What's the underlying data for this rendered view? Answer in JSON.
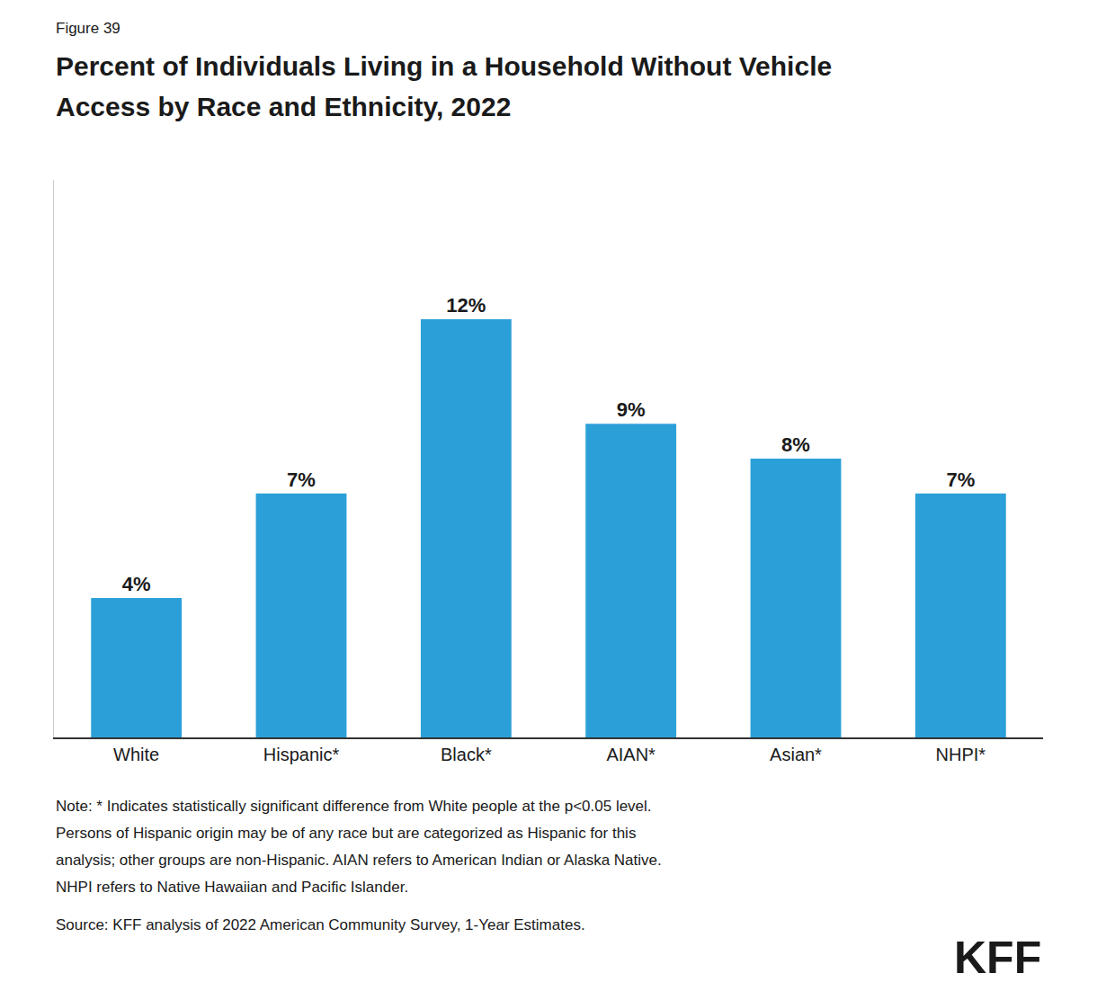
{
  "chart_data": {
    "type": "bar",
    "title": "Percent of Individuals Living in a Household Without Vehicle Access by Race and Ethnicity, 2022",
    "categories": [
      "White",
      "Hispanic*",
      "Black*",
      "AIAN*",
      "Asian*",
      "NHPI*"
    ],
    "values": [
      4,
      7,
      12,
      9,
      8,
      7
    ],
    "value_labels": [
      "4%",
      "7%",
      "12%",
      "9%",
      "8%",
      "7%"
    ],
    "color": "#2b9fd8",
    "ylim": [
      0,
      16
    ],
    "data_labels": true,
    "tick_labels": "x",
    "grid": false,
    "annotations": [
      "Figure 39",
      "Note: * Indicates statistically significant difference from White people at the p<0.05 level.",
      "Persons of Hispanic origin may be of any race but are categorized as Hispanic for this",
      "analysis; other groups are non-Hispanic. AIAN refers to American Indian or Alaska Native.",
      "NHPI refers to Native Hawaiian and Pacific Islander.",
      "Source: KFF analysis of 2022 American Community Survey, 1-Year Estimates.",
      "KFF"
    ]
  }
}
